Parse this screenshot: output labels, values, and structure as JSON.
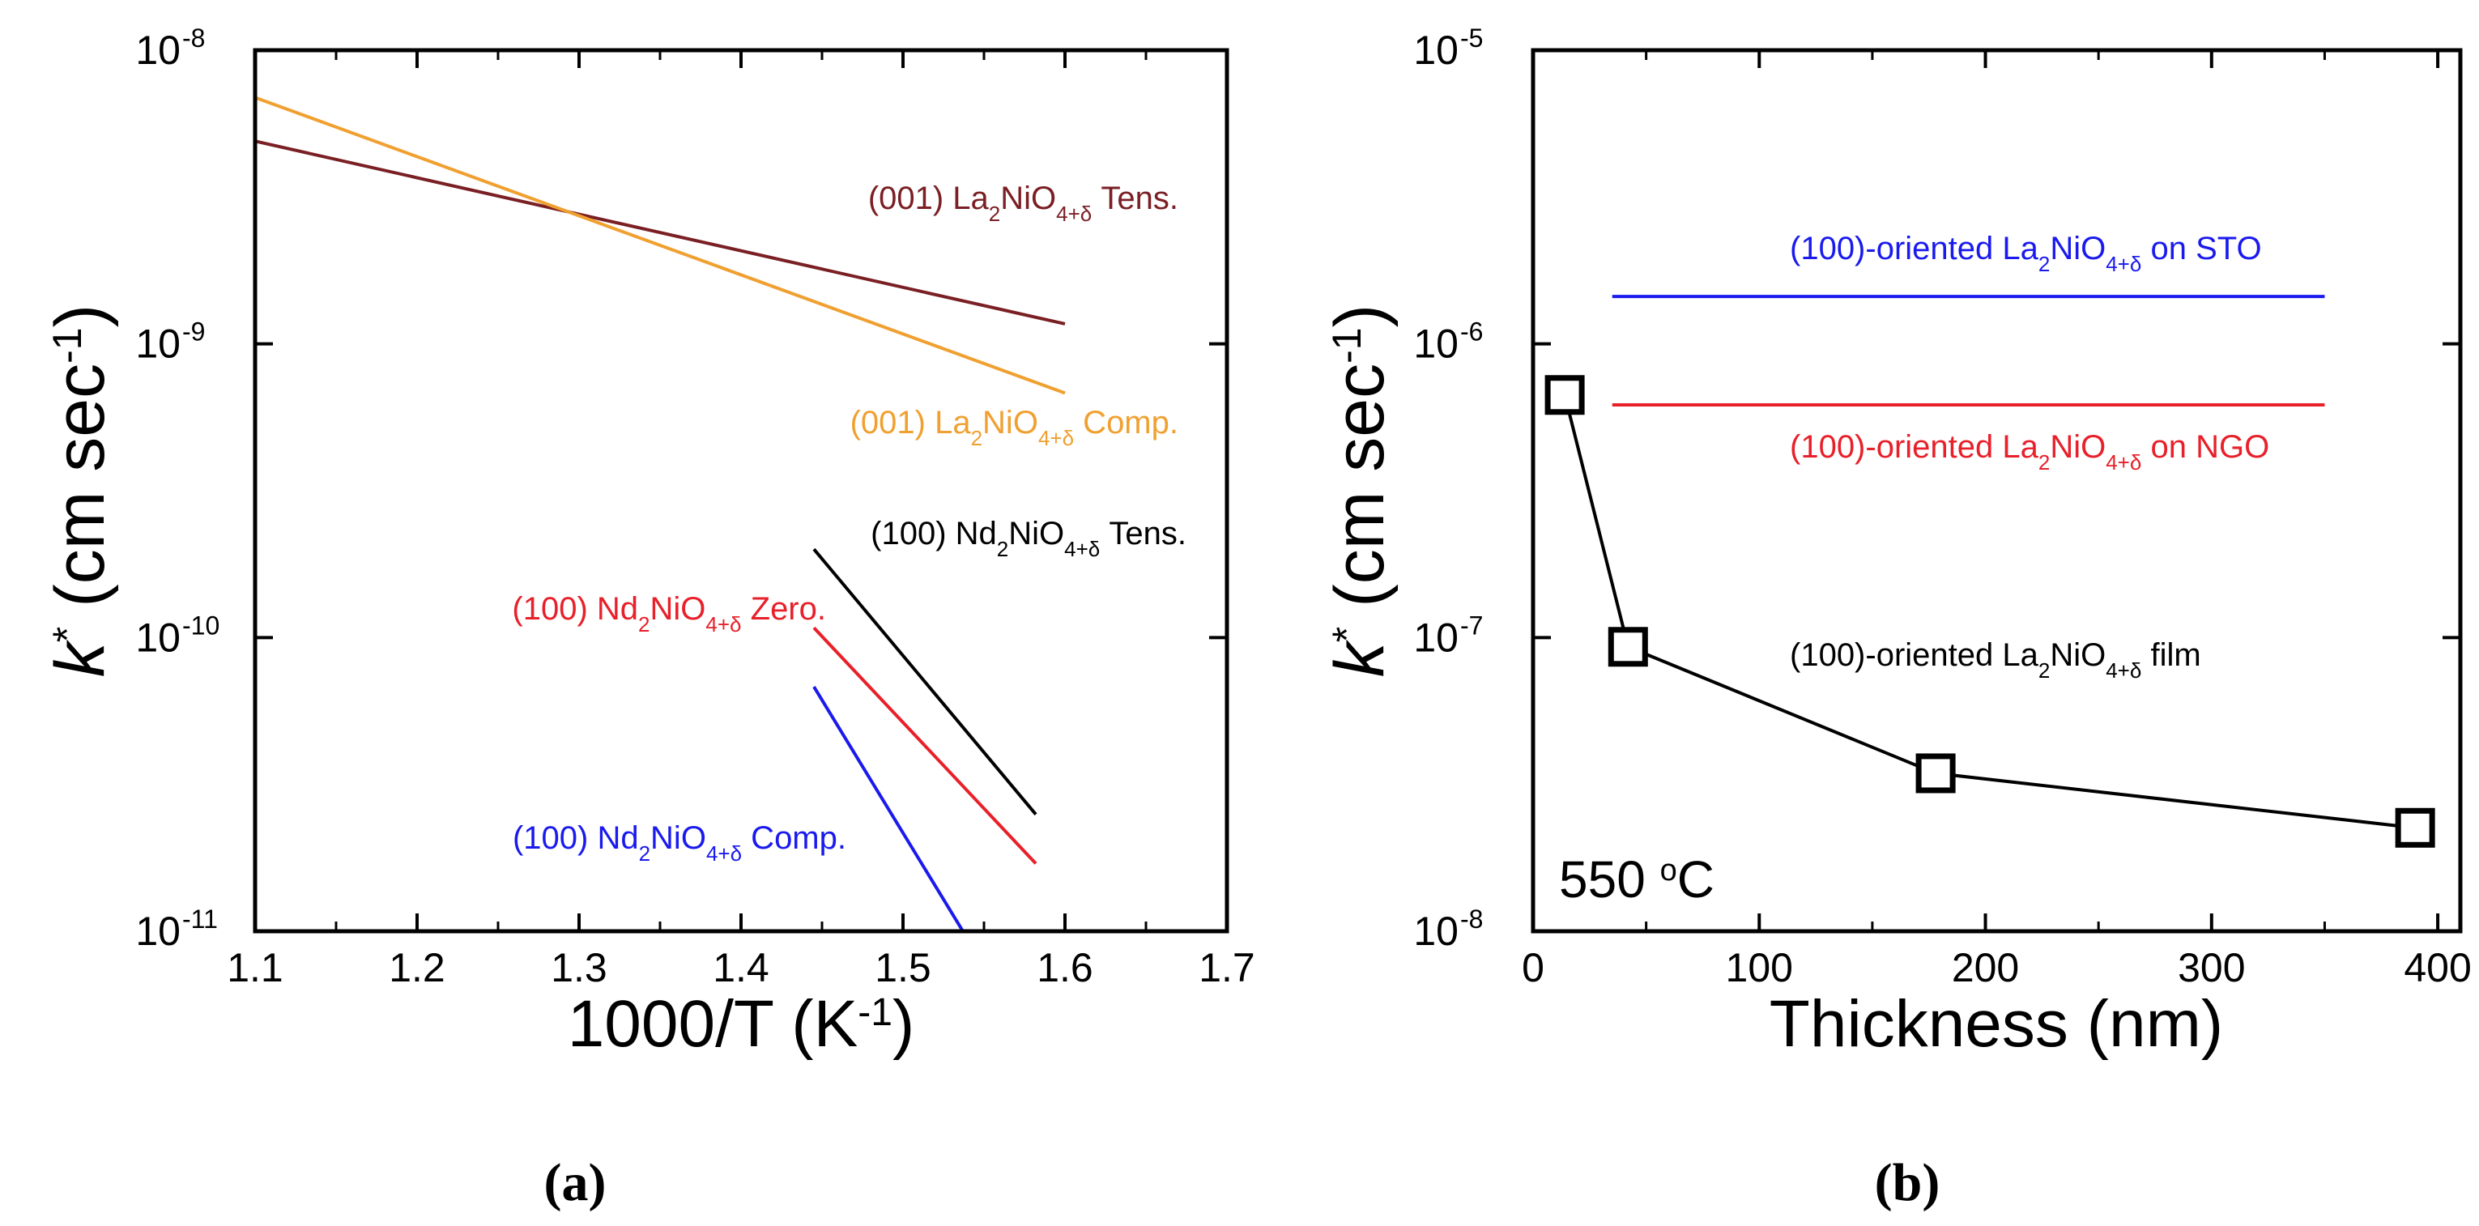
{
  "chart_data": [
    {
      "id": "a",
      "type": "line",
      "caption": "(a)",
      "xlabel": "1000/T (K",
      "xlabel_sup": "-1",
      "xlabel_end": ")",
      "ylabel": "k",
      "ylabel_sup": "*",
      "ylabel_unit": " (cm sec",
      "ylabel_unit_sup": "-1",
      "ylabel_end": ")",
      "xlim": [
        1.1,
        1.7
      ],
      "ylim_log10": [
        -11,
        -8
      ],
      "yscale": "log",
      "xticks": [
        1.1,
        1.2,
        1.3,
        1.4,
        1.5,
        1.6,
        1.7
      ],
      "xtick_labels": [
        "1.1",
        "1.2",
        "1.3",
        "1.4",
        "1.5",
        "1.6",
        "1.7"
      ],
      "yticks_exp": [
        -11,
        -10,
        -9,
        -8
      ],
      "ytick_base": "10",
      "ytick_exp_labels": [
        "-11",
        "-10",
        "-9",
        "-8"
      ],
      "series": [
        {
          "name": "(001) La2NiO4+δ Tens.",
          "color": "#7a1f24",
          "x": [
            1.1,
            1.6
          ],
          "y": [
            4.9e-09,
            1.17e-09
          ],
          "label": {
            "pre": "(001) La",
            "s1": "2",
            "mid": "NiO",
            "s2": "4+δ",
            "post": " Tens."
          }
        },
        {
          "name": "(001) La2NiO4+δ Comp.",
          "color": "#f0a030",
          "x": [
            1.1,
            1.6
          ],
          "y": [
            6.9e-09,
            6.8e-10
          ],
          "label": {
            "pre": "(001) La",
            "s1": "2",
            "mid": "NiO",
            "s2": "4+δ",
            "post": " Comp."
          }
        },
        {
          "name": "(100) Nd2NiO4+δ Tens.",
          "color": "#000000",
          "x": [
            1.445,
            1.582
          ],
          "y": [
            2e-10,
            2.5e-11
          ],
          "label": {
            "pre": "(100) Nd",
            "s1": "2",
            "mid": "NiO",
            "s2": "4+δ",
            "post": " Tens."
          }
        },
        {
          "name": "(100) Nd2NiO4+δ Zero.",
          "color": "#e8202a",
          "x": [
            1.445,
            1.582
          ],
          "y": [
            1.08e-10,
            1.7e-11
          ],
          "label": {
            "pre": "(100) Nd",
            "s1": "2",
            "mid": "NiO",
            "s2": "4+δ",
            "post": " Zero."
          }
        },
        {
          "name": "(100) Nd2NiO4+δ Comp.",
          "color": "#1a1aee",
          "x": [
            1.445,
            1.537
          ],
          "y": [
            6.8e-11,
            1e-11
          ],
          "label": {
            "pre": "(100) Nd",
            "s1": "2",
            "mid": "NiO",
            "s2": "4+δ",
            "post": " Comp."
          }
        }
      ]
    },
    {
      "id": "b",
      "type": "line",
      "caption": "(b)",
      "xlabel": "Thickness (nm)",
      "ylabel": "k",
      "ylabel_sup": "*",
      "ylabel_unit": " (cm sec",
      "ylabel_unit_sup": "-1",
      "ylabel_end": ")",
      "xlim": [
        0,
        410
      ],
      "ylim_log10": [
        -8,
        -5
      ],
      "yscale": "log",
      "xticks": [
        0,
        100,
        200,
        300,
        400
      ],
      "xtick_labels": [
        "0",
        "100",
        "200",
        "300",
        "400"
      ],
      "yticks_exp": [
        -8,
        -7,
        -6,
        -5
      ],
      "ytick_base": "10",
      "ytick_exp_labels": [
        "-8",
        "-7",
        "-6",
        "-5"
      ],
      "temperature_label": {
        "value": "550 ",
        "sup": "o",
        "unit": "C"
      },
      "series": [
        {
          "name": "(100)-oriented La2NiO4+δ on STO",
          "color": "#1a1aee",
          "x": [
            35,
            350
          ],
          "y": [
            1.45e-06,
            1.45e-06
          ],
          "label": {
            "pre": "(100)-oriented La",
            "s1": "2",
            "mid": "NiO",
            "s2": "4+δ",
            "post": " on STO"
          }
        },
        {
          "name": "(100)-oriented La2NiO4+δ on NGO",
          "color": "#e8202a",
          "x": [
            35,
            350
          ],
          "y": [
            6.2e-07,
            6.2e-07
          ],
          "label": {
            "pre": "(100)-oriented La",
            "s1": "2",
            "mid": "NiO",
            "s2": "4+δ",
            "post": " on NGO"
          }
        },
        {
          "name": "(100)-oriented La2NiO4+δ film",
          "color": "#000000",
          "markers": "square",
          "x": [
            14,
            42,
            178,
            390
          ],
          "y": [
            6.7e-07,
            9.3e-08,
            3.45e-08,
            2.25e-08
          ],
          "label": {
            "pre": "(100)-oriented La",
            "s1": "2",
            "mid": "NiO",
            "s2": "4+δ",
            "post": " film"
          }
        }
      ]
    }
  ]
}
